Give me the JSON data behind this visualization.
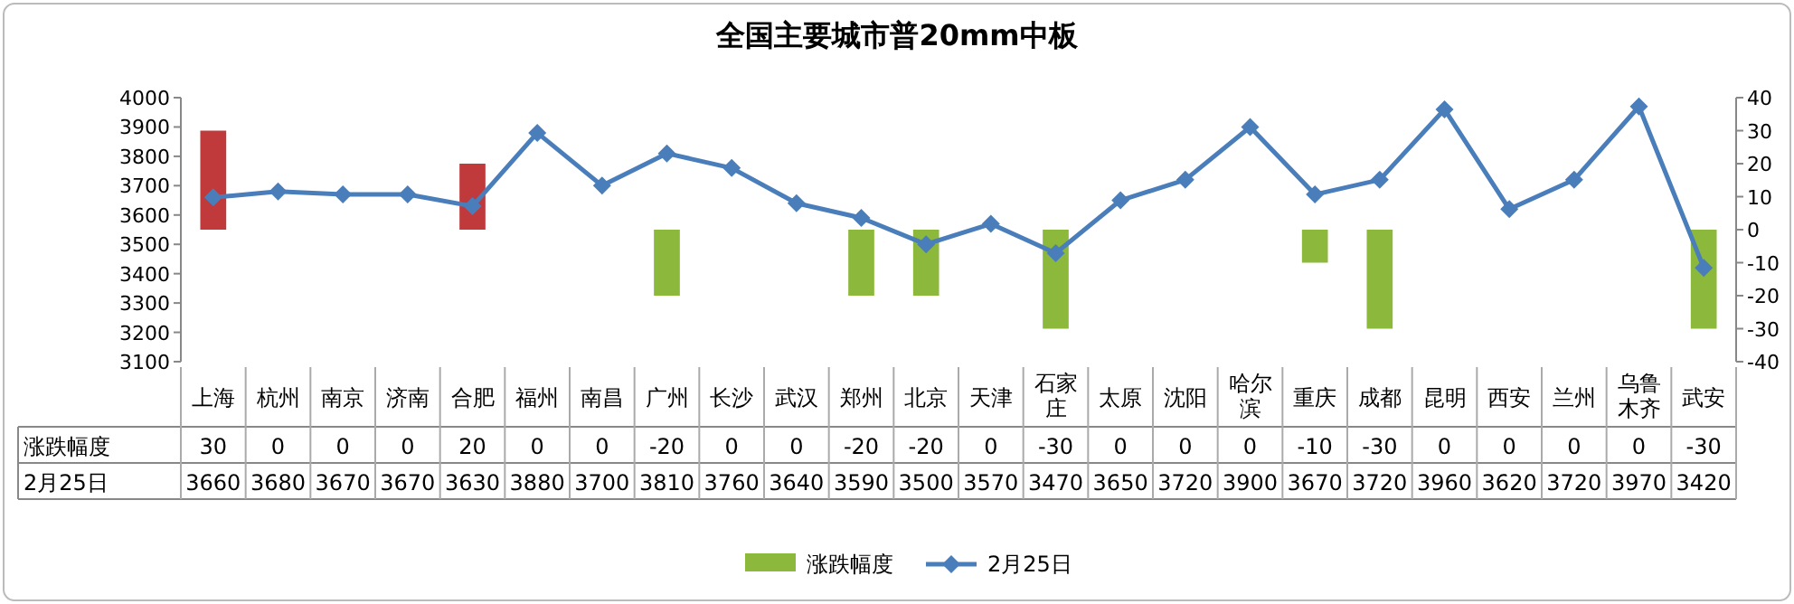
{
  "chart_data": {
    "type": "bar",
    "title": "全国主要城市普20mm中板",
    "categories": [
      "上海",
      "杭州",
      "南京",
      "济南",
      "合肥",
      "福州",
      "南昌",
      "广州",
      "长沙",
      "武汉",
      "郑州",
      "北京",
      "天津",
      "石家庄",
      "太原",
      "沈阳",
      "哈尔滨",
      "重庆",
      "成都",
      "昆明",
      "西安",
      "兰州",
      "乌鲁木齐",
      "武安"
    ],
    "series": [
      {
        "name": "涨跌幅度",
        "axis": "y2",
        "color": "#8cb83c",
        "colors": [
          "#c0393b",
          "#8cb83c",
          "#8cb83c",
          "#8cb83c",
          "#c0393b",
          "#8cb83c",
          "#8cb83c",
          "#8cb83c",
          "#8cb83c",
          "#8cb83c",
          "#8cb83c",
          "#8cb83c",
          "#8cb83c",
          "#8cb83c",
          "#8cb83c",
          "#8cb83c",
          "#8cb83c",
          "#8cb83c",
          "#8cb83c",
          "#8cb83c",
          "#8cb83c",
          "#8cb83c",
          "#8cb83c",
          "#8cb83c"
        ],
        "values": [
          30,
          0,
          0,
          0,
          20,
          0,
          0,
          -20,
          0,
          0,
          -20,
          -20,
          0,
          -30,
          0,
          0,
          0,
          -10,
          -30,
          0,
          0,
          0,
          0,
          -30
        ]
      },
      {
        "name": "2月25日",
        "type": "line",
        "color": "#4a7ebb",
        "values": [
          3660,
          3680,
          3670,
          3670,
          3630,
          3880,
          3700,
          3810,
          3760,
          3640,
          3590,
          3500,
          3570,
          3470,
          3650,
          3720,
          3900,
          3670,
          3720,
          3960,
          3620,
          3720,
          3970,
          3420
        ]
      }
    ],
    "marker": "diamond",
    "ylim": [
      3100,
      4000
    ],
    "yticks": [
      3100,
      3200,
      3300,
      3400,
      3500,
      3600,
      3700,
      3800,
      3900,
      4000
    ],
    "y2lim": [
      -40,
      40
    ],
    "y2ticks": [
      -40,
      -30,
      -20,
      -10,
      0,
      10,
      20,
      30,
      40
    ],
    "data_labels": true,
    "legend": "bottom"
  }
}
